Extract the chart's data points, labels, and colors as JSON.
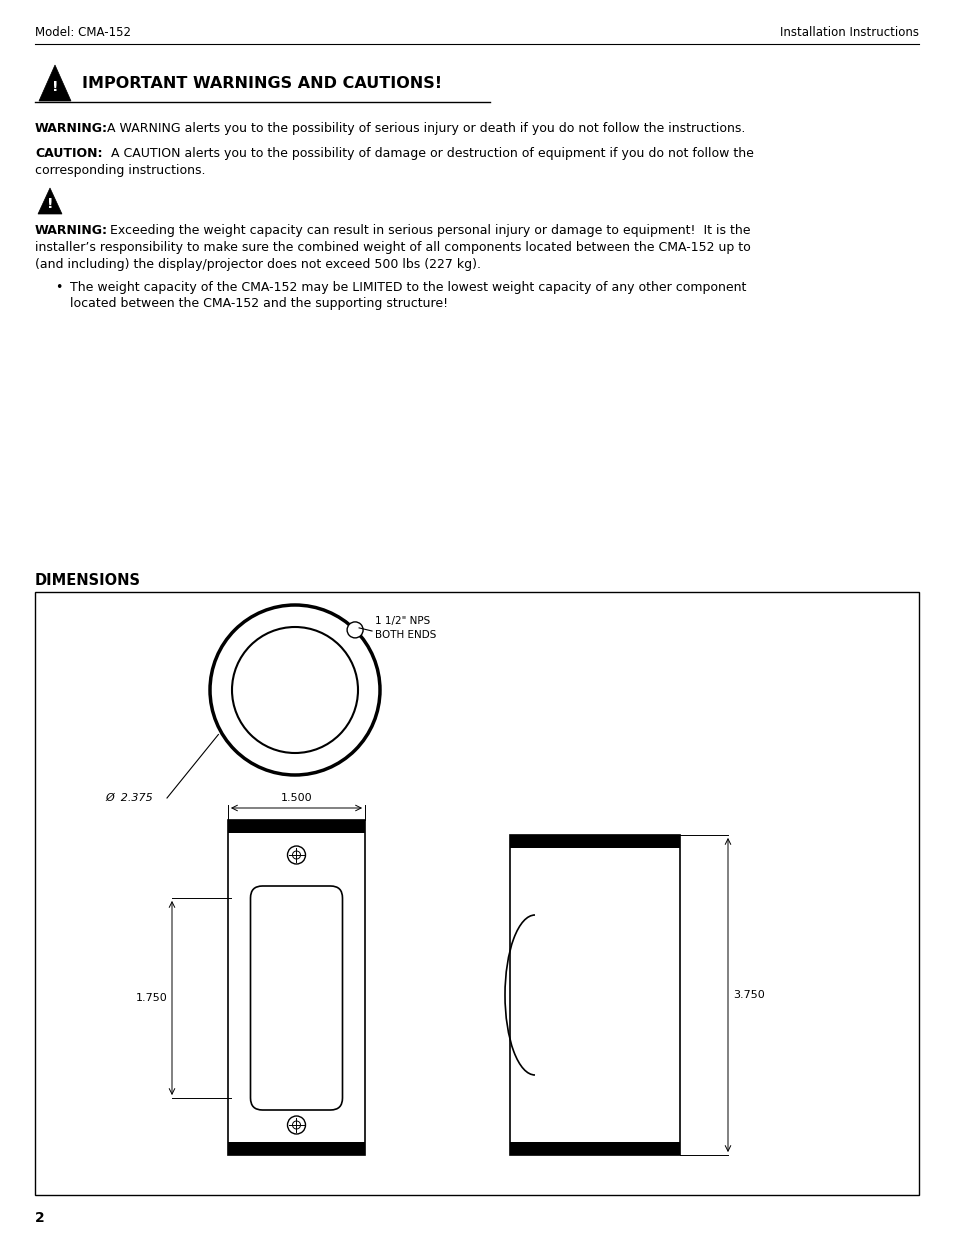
{
  "header_left": "Model: CMA-152",
  "header_right": "Installation Instructions",
  "section_title": "IMPORTANT WARNINGS AND CAUTIONS!",
  "warning_bold": "WARNING:",
  "warning_text": " A WARNING alerts you to the possibility of serious injury or death if you do not follow the instructions.",
  "caution_bold": "CAUTION:",
  "caution_text1": " A CAUTION alerts you to the possibility of damage or destruction of equipment if you do not follow the",
  "caution_text2": "corresponding instructions.",
  "warning2_bold": "WARNING:",
  "warning2_text1": "  Exceeding the weight capacity can result in serious personal injury or damage to equipment!  It is the",
  "warning2_text2": "installer’s responsibility to make sure the combined weight of all components located between the CMA-152 up to",
  "warning2_text3": "(and including) the display/projector does not exceed 500 lbs (227 kg).",
  "bullet_text1": "The weight capacity of the CMA-152 may be LIMITED to the lowest weight capacity of any other component",
  "bullet_text2": "located between the CMA-152 and the supporting structure!",
  "dimensions_title": "DIMENSIONS",
  "dim_nps": "1 1/2\" NPS",
  "dim_both_ends": "BOTH ENDS",
  "dim_dia": "Ø  2.375",
  "dim_1500": "1.500",
  "dim_1750": "1.750",
  "dim_3750": "3.750",
  "page_number": "2",
  "bg_color": "#ffffff",
  "text_color": "#000000"
}
